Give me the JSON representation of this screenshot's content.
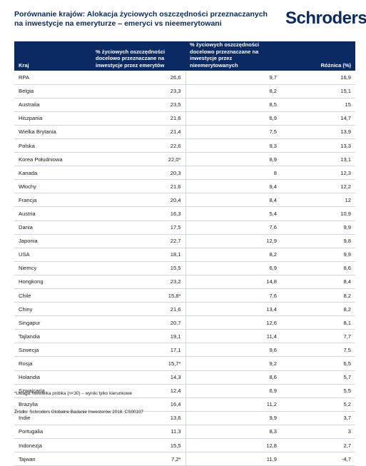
{
  "title": "Porównanie krajów: Alokacja życiowych oszczędności przeznaczanych na inwestycje na emeryturze – emeryci vs nieemerytowani",
  "brand": "Schroders",
  "table": {
    "headers": {
      "country": "Kraj",
      "retired": "% życiowych oszczędności docelowo przeznaczane na inwestycje przez emerytów",
      "non_retired": "% życiowych oszczędności docelowo przeznaczane na inwestycje przez nieemerytowanych",
      "difference": "Różnica (%)"
    },
    "rows": [
      {
        "country": "RPA",
        "retired": "26,6",
        "non_retired": "9,7",
        "difference": "16,9"
      },
      {
        "country": "Belgia",
        "retired": "23,3",
        "non_retired": "8,2",
        "difference": "15,1"
      },
      {
        "country": "Australia",
        "retired": "23,5",
        "non_retired": "8,5",
        "difference": "15"
      },
      {
        "country": "Hiszpania",
        "retired": "21,6",
        "non_retired": "6,9",
        "difference": "14,7"
      },
      {
        "country": "Wielka Brytania",
        "retired": "21,4",
        "non_retired": "7,5",
        "difference": "13,9"
      },
      {
        "country": "Polska",
        "retired": "22,6",
        "non_retired": "9,3",
        "difference": "13,3"
      },
      {
        "country": "Korea Południowa",
        "retired": "22,0*",
        "non_retired": "8,9",
        "difference": "13,1"
      },
      {
        "country": "Kanada",
        "retired": "20,3",
        "non_retired": "8",
        "difference": "12,3"
      },
      {
        "country": "Włochy",
        "retired": "21,6",
        "non_retired": "9,4",
        "difference": "12,2"
      },
      {
        "country": "Francja",
        "retired": "20,4",
        "non_retired": "8,4",
        "difference": "12"
      },
      {
        "country": "Austria",
        "retired": "16,3",
        "non_retired": "5,4",
        "difference": "10,9"
      },
      {
        "country": "Dania",
        "retired": "17,5",
        "non_retired": "7,6",
        "difference": "9,9"
      },
      {
        "country": "Japonia",
        "retired": "22,7",
        "non_retired": "12,9",
        "difference": "9,8"
      },
      {
        "country": "USA",
        "retired": "18,1",
        "non_retired": "8,2",
        "difference": "9,9"
      },
      {
        "country": "Niemcy",
        "retired": "15,5",
        "non_retired": "6,9",
        "difference": "8,6"
      },
      {
        "country": "Hongkong",
        "retired": "23,2",
        "non_retired": "14,8",
        "difference": "8,4"
      },
      {
        "country": "Chile",
        "retired": "15,8*",
        "non_retired": "7,6",
        "difference": "8,2"
      },
      {
        "country": "Chiny",
        "retired": "21,6",
        "non_retired": "13,4",
        "difference": "8,2"
      },
      {
        "country": "Singapur",
        "retired": "20,7",
        "non_retired": "12,6",
        "difference": "8,1"
      },
      {
        "country": "Tajlandia",
        "retired": "19,1",
        "non_retired": "11,4",
        "difference": "7,7"
      },
      {
        "country": "Szwecja",
        "retired": "17,1",
        "non_retired": "9,6",
        "difference": "7,5"
      },
      {
        "country": "Rosja",
        "retired": "15,7*",
        "non_retired": "9,2",
        "difference": "6,5"
      },
      {
        "country": "Holandia",
        "retired": "14,3",
        "non_retired": "8,6",
        "difference": "5,7"
      },
      {
        "country": "Szwajcaria",
        "retired": "12,4",
        "non_retired": "6,9",
        "difference": "5,5"
      },
      {
        "country": "Brazylia",
        "retired": "16,4",
        "non_retired": "11,2",
        "difference": "5,2"
      },
      {
        "country": "Indie",
        "retired": "13,6",
        "non_retired": "9,9",
        "difference": "3,7"
      },
      {
        "country": "Portugalia",
        "retired": "11,3",
        "non_retired": "8,3",
        "difference": "3"
      },
      {
        "country": "Indonezja",
        "retired": "15,5",
        "non_retired": "12,8",
        "difference": "2,7"
      },
      {
        "country": "Tajwan",
        "retired": "7,2*",
        "non_retired": "11,9",
        "difference": "-4,7"
      }
    ]
  },
  "footnote": "*Uwaga: niewielka próbka (n<30) – wyniki tylko kierunkowe",
  "source": "Źródło: Schroders Globalne Badanie Inwestorów 2018. CS00107"
}
